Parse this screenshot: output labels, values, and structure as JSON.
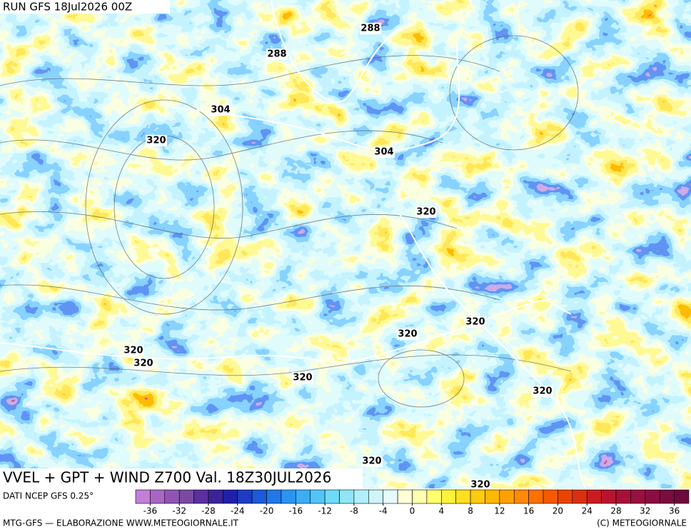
{
  "header": {
    "run": "RUN GFS 18Jul2026 00Z"
  },
  "map": {
    "title": "VVEL + GPT + WIND Z700 Val. 18Z30JUL2026",
    "contour_labels": [
      288,
      288,
      304,
      304,
      320,
      320,
      320,
      320,
      320,
      320,
      320,
      320,
      320,
      320
    ]
  },
  "legend": {
    "source": "DATI NCEP GFS 0.25°",
    "lim": [
      -38,
      38
    ],
    "ticks": [
      -36,
      -32,
      -28,
      -24,
      -20,
      -16,
      -12,
      -8,
      -4,
      0,
      4,
      8,
      12,
      16,
      20,
      24,
      28,
      32,
      36
    ],
    "colors": [
      "#c27fd6",
      "#a967c5",
      "#8f55b3",
      "#7a4aa3",
      "#5a2f9e",
      "#3d2299",
      "#1f1fa8",
      "#1c3cc4",
      "#1b5ad9",
      "#1f78e8",
      "#2b94f0",
      "#3aaef5",
      "#4fc6f7",
      "#6fdaf8",
      "#90e6f6",
      "#b1effa",
      "#cff5fb",
      "#e6fbfd",
      "#ffffd8",
      "#ffffb0",
      "#ffff70",
      "#fff23a",
      "#ffe020",
      "#ffca10",
      "#ffb800",
      "#ffa200",
      "#ff8a00",
      "#ff7000",
      "#f55a00",
      "#e84400",
      "#d83010",
      "#c81c20",
      "#b8142e",
      "#a8103a",
      "#98103e",
      "#8a0e40",
      "#7c0c40",
      "#6e0a3e"
    ]
  },
  "footer": {
    "left": "MTG-GFS — ELABORAZIONE WWW.METEOGIORNALE.IT",
    "right": "(C) METEOGIORNALE"
  }
}
